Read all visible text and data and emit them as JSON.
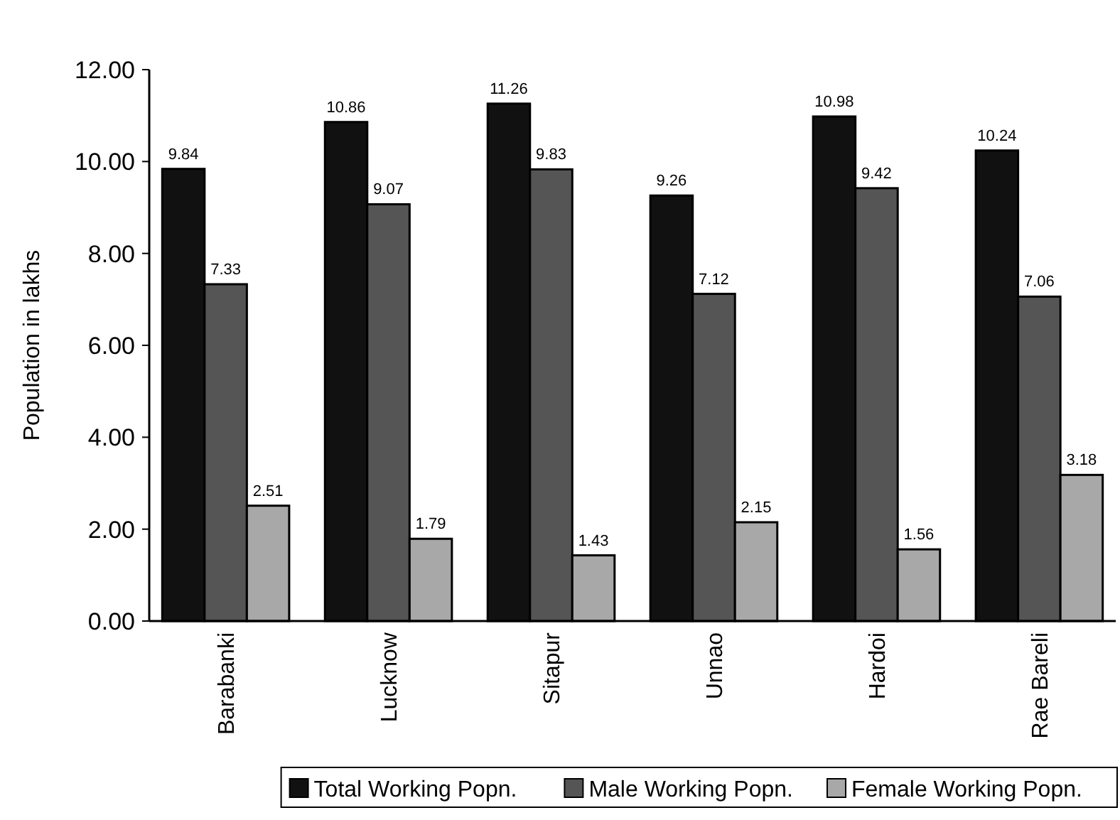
{
  "chart_data": {
    "type": "bar",
    "ylabel": "Population in lakhs",
    "categories": [
      "Barabanki",
      "Lucknow",
      "Sitapur",
      "Unnao",
      "Hardoi",
      "Rae Bareli"
    ],
    "series": [
      {
        "name": "Total Working Popn.",
        "color": "#111111",
        "values": [
          9.84,
          10.86,
          11.26,
          9.26,
          10.98,
          10.24
        ]
      },
      {
        "name": "Male Working Popn.",
        "color": "#555555",
        "values": [
          7.33,
          9.07,
          9.83,
          7.12,
          9.42,
          7.06
        ]
      },
      {
        "name": "Female Working Popn.",
        "color": "#a8a8a8",
        "values": [
          2.51,
          1.79,
          1.43,
          2.15,
          1.56,
          3.18
        ]
      }
    ],
    "ylim": [
      0,
      12
    ],
    "yticks": [
      {
        "value": 0,
        "label": "0.00"
      },
      {
        "value": 2,
        "label": "2.00"
      },
      {
        "value": 4,
        "label": "4.00"
      },
      {
        "value": 6,
        "label": "6.00"
      },
      {
        "value": 8,
        "label": "8.00"
      },
      {
        "value": 10,
        "label": "10.00"
      },
      {
        "value": 12,
        "label": "12.00"
      }
    ],
    "data_labels": true,
    "grid": false,
    "legend": "bottom"
  }
}
